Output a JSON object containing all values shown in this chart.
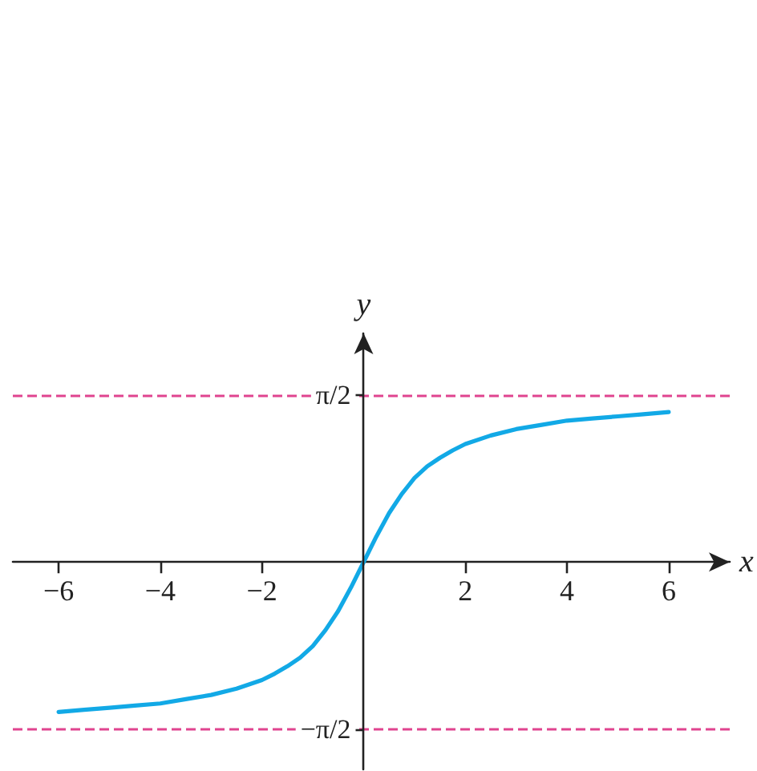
{
  "chart_data": {
    "type": "line",
    "xlabel": "x",
    "ylabel": "y",
    "xlim": [
      -6.9,
      7.2
    ],
    "ylim": [
      -1.95,
      2.15
    ],
    "xticks": [
      {
        "value": -6,
        "label": "−6"
      },
      {
        "value": -4,
        "label": "−4"
      },
      {
        "value": -2,
        "label": "−2"
      },
      2,
      4,
      6
    ],
    "yticks": [
      {
        "value": -1.5708,
        "label": "−π/2"
      },
      {
        "value": 1.5708,
        "label": "π/2"
      }
    ],
    "series": [
      {
        "color": "#12a9e6",
        "x": [
          -6,
          -5.5,
          -5,
          -4.5,
          -4,
          -3.5,
          -3,
          -2.5,
          -2,
          -1.75,
          -1.5,
          -1.25,
          -1,
          -0.75,
          -0.5,
          -0.25,
          0,
          0.25,
          0.5,
          0.75,
          1,
          1.25,
          1.5,
          1.75,
          2,
          2.5,
          3,
          3.5,
          4,
          4.5,
          5,
          5.5,
          6
        ],
        "values": [
          -1.41,
          -1.39,
          -1.37,
          -1.35,
          -1.33,
          -1.29,
          -1.25,
          -1.19,
          -1.11,
          -1.05,
          -0.98,
          -0.9,
          -0.79,
          -0.64,
          -0.46,
          -0.24,
          0,
          0.24,
          0.46,
          0.64,
          0.79,
          0.9,
          0.98,
          1.05,
          1.11,
          1.19,
          1.25,
          1.29,
          1.33,
          1.35,
          1.37,
          1.39,
          1.41
        ]
      }
    ],
    "ref_lines": [
      {
        "axis": "y",
        "value": 1.5708,
        "color": "#e0448f",
        "line_style": "dashed"
      },
      {
        "axis": "y",
        "value": -1.5708,
        "color": "#e0448f",
        "line_style": "dashed"
      }
    ],
    "grid": false,
    "marker": "none",
    "line_style": "solid"
  }
}
